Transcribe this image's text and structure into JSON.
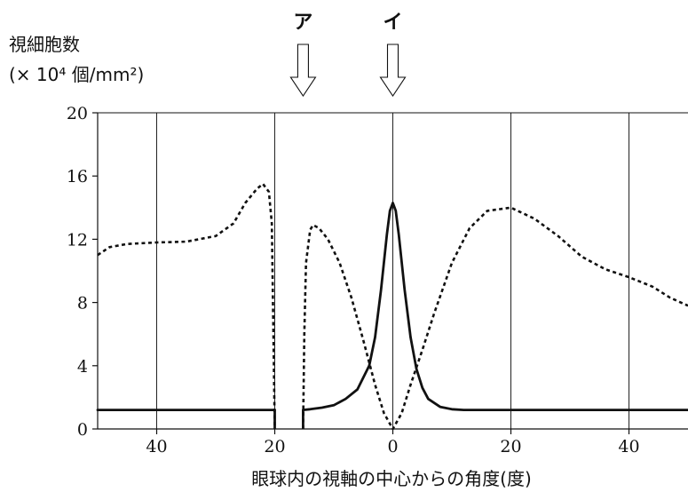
{
  "chart_data": {
    "type": "line",
    "ylabel_line1": "視細胞数",
    "ylabel_line2": "(× 10⁴ 個/mm²)",
    "xlabel": "眼球内の視軸の中心からの角度(度)",
    "xlim": [
      -50,
      50
    ],
    "ylim": [
      0,
      20
    ],
    "x_ticks": [
      -40,
      -20,
      0,
      20,
      40
    ],
    "x_tick_labels": [
      "40",
      "20",
      "0",
      "20",
      "40"
    ],
    "y_ticks": [
      0,
      4,
      8,
      12,
      16,
      20
    ],
    "y_tick_labels": [
      "0",
      "4",
      "8",
      "12",
      "16",
      "20"
    ],
    "grid": "vertical",
    "markers": [
      {
        "label": "ア",
        "x": -15.2
      },
      {
        "label": "イ",
        "x": 0
      }
    ],
    "blind_spot": [
      -20,
      -15.2
    ],
    "series": [
      {
        "style": "solid",
        "segments": [
          [
            [
              -50,
              1.2
            ],
            [
              -20,
              1.2
            ]
          ],
          [
            [
              -15.2,
              1.2
            ],
            [
              -14,
              1.25
            ],
            [
              -12,
              1.35
            ],
            [
              -10,
              1.5
            ],
            [
              -8,
              1.9
            ],
            [
              -6,
              2.5
            ],
            [
              -4,
              4.0
            ],
            [
              -3,
              5.8
            ],
            [
              -2,
              8.8
            ],
            [
              -1,
              12.3
            ],
            [
              -0.5,
              13.8
            ],
            [
              0,
              14.3
            ],
            [
              0.5,
              13.8
            ],
            [
              1,
              12.3
            ],
            [
              2,
              8.8
            ],
            [
              3,
              5.8
            ],
            [
              4,
              3.8
            ],
            [
              5,
              2.6
            ],
            [
              6,
              1.9
            ],
            [
              8,
              1.4
            ],
            [
              10,
              1.25
            ],
            [
              12,
              1.2
            ],
            [
              50,
              1.2
            ]
          ]
        ]
      },
      {
        "style": "dashed",
        "segments": [
          [
            [
              -50,
              11.0
            ],
            [
              -48,
              11.5
            ],
            [
              -45,
              11.7
            ],
            [
              -40,
              11.8
            ],
            [
              -35,
              11.85
            ],
            [
              -30,
              12.2
            ],
            [
              -27,
              13.0
            ],
            [
              -25,
              14.3
            ],
            [
              -23,
              15.2
            ],
            [
              -22,
              15.5
            ],
            [
              -21,
              15.0
            ],
            [
              -20.5,
              13.0
            ],
            [
              -20,
              0
            ]
          ],
          [
            [
              -15.2,
              0
            ],
            [
              -15,
              6.0
            ],
            [
              -14.7,
              10.5
            ],
            [
              -14,
              12.6
            ],
            [
              -13.5,
              12.9
            ],
            [
              -12.5,
              12.7
            ],
            [
              -11,
              12.0
            ],
            [
              -9,
              10.5
            ],
            [
              -7,
              8.3
            ],
            [
              -5,
              5.6
            ],
            [
              -3,
              2.8
            ],
            [
              -1.5,
              1.0
            ],
            [
              0,
              0
            ],
            [
              1.5,
              1.0
            ],
            [
              3,
              2.8
            ],
            [
              5,
              5.0
            ],
            [
              7,
              7.3
            ],
            [
              10,
              10.5
            ],
            [
              13,
              12.7
            ],
            [
              16,
              13.8
            ],
            [
              20,
              14.0
            ],
            [
              24,
              13.3
            ],
            [
              28,
              12.2
            ],
            [
              32,
              10.9
            ],
            [
              36,
              10.1
            ],
            [
              40,
              9.6
            ],
            [
              44,
              9.0
            ],
            [
              47,
              8.3
            ],
            [
              50,
              7.8
            ]
          ]
        ]
      }
    ]
  }
}
